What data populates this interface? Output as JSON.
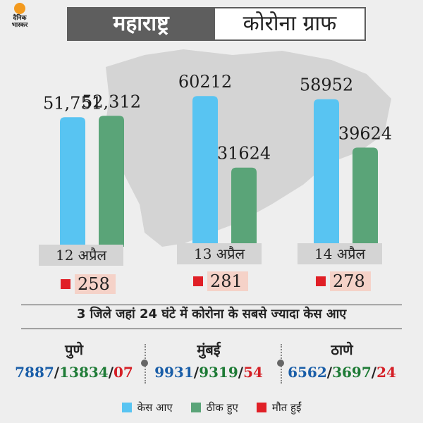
{
  "header": {
    "logo_text_1": "दैनिक",
    "logo_text_2": "भास्कर",
    "title_left": "महाराष्ट्र",
    "title_right": "कोरोना ग्राफ"
  },
  "chart_data": {
    "type": "bar",
    "categories": [
      "12 अप्रैल",
      "13 अप्रैल",
      "14 अप्रैल"
    ],
    "series": [
      {
        "name": "केस आए",
        "values": [
          51751,
          60212,
          58952
        ],
        "labels": [
          "51,751",
          "60212",
          "58952"
        ],
        "color": "#58c4f2"
      },
      {
        "name": "ठीक हुए",
        "values": [
          52312,
          31624,
          39624
        ],
        "labels": [
          "52,312",
          "31624",
          "39624"
        ],
        "color": "#5aa478"
      }
    ],
    "deaths": {
      "name": "मौत हुईं",
      "values": [
        "258",
        "281",
        "278"
      ],
      "color": "#e01f26"
    },
    "title": "",
    "ylim": [
      0,
      65000
    ]
  },
  "districts": {
    "title": "3 जिले जहां 24 घंटे में कोरोना के सबसे ज्यादा केस आए",
    "items": [
      {
        "name": "पुणे",
        "cases": "7887",
        "recovered": "13834",
        "deaths": "07"
      },
      {
        "name": "मुंबई",
        "cases": "9931",
        "recovered": "9319",
        "deaths": "54"
      },
      {
        "name": "ठाणे",
        "cases": "6562",
        "recovered": "3697",
        "deaths": "24"
      }
    ],
    "separator": "/"
  },
  "legend": [
    {
      "label": "केस आए",
      "color": "#58c4f2"
    },
    {
      "label": "ठीक हुए",
      "color": "#5aa478"
    },
    {
      "label": "मौत हुईं",
      "color": "#e01f26"
    }
  ]
}
